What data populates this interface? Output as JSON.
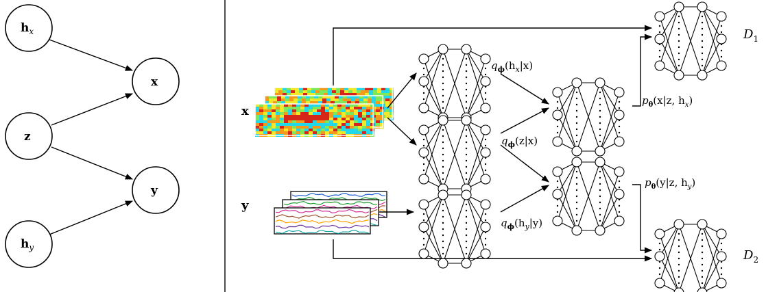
{
  "graphical_model": {
    "nodes": [
      {
        "id": "hx",
        "label": "h",
        "sub": "x"
      },
      {
        "id": "x",
        "label": "x",
        "sub": ""
      },
      {
        "id": "z",
        "label": "z",
        "sub": ""
      },
      {
        "id": "y",
        "label": "y",
        "sub": ""
      },
      {
        "id": "hy",
        "label": "h",
        "sub": "y"
      }
    ],
    "edges": [
      {
        "from": "hx",
        "to": "x"
      },
      {
        "from": "z",
        "to": "x"
      },
      {
        "from": "z",
        "to": "y"
      },
      {
        "from": "hy",
        "to": "y"
      }
    ]
  },
  "network": {
    "input_x_label": "x",
    "input_y_label": "y",
    "enc_hx_label": "q",
    "enc_hx_sub": "ϕ",
    "enc_hx_arg": "(h",
    "enc_hx_arg_sub": "x",
    "enc_hx_arg_end": "|x)",
    "enc_z_label": "q",
    "enc_z_sub": "ϕ",
    "enc_z_arg": "(z|x)",
    "enc_hy_label": "q",
    "enc_hy_sub": "ϕ",
    "enc_hy_arg": "(h",
    "enc_hy_arg_sub": "y",
    "enc_hy_arg_end": "|y)",
    "dec_x_label": "p",
    "dec_x_sub": "θ",
    "dec_x_arg": "(x|z, h",
    "dec_x_arg_sub": "x",
    "dec_x_arg_end": ")",
    "dec_y_label": "p",
    "dec_y_sub": "θ",
    "dec_y_arg": "(y|z, h",
    "dec_y_arg_sub": "y",
    "dec_y_arg_end": ")",
    "disc1_label": "D",
    "disc1_sub": "1",
    "disc2_label": "D",
    "disc2_sub": "2"
  },
  "colors": {
    "heatmap": [
      "#0a2fd1",
      "#2b8cff",
      "#23d6e8",
      "#7ee85a",
      "#f2e82a",
      "#f39a1c",
      "#d6261a",
      "#8a0f0f"
    ],
    "traces": [
      "#1f5fd1",
      "#1d9e2f",
      "#d12f9b",
      "#a0522d",
      "#ff9f00",
      "#6b2fa0",
      "#18a6a6"
    ]
  }
}
